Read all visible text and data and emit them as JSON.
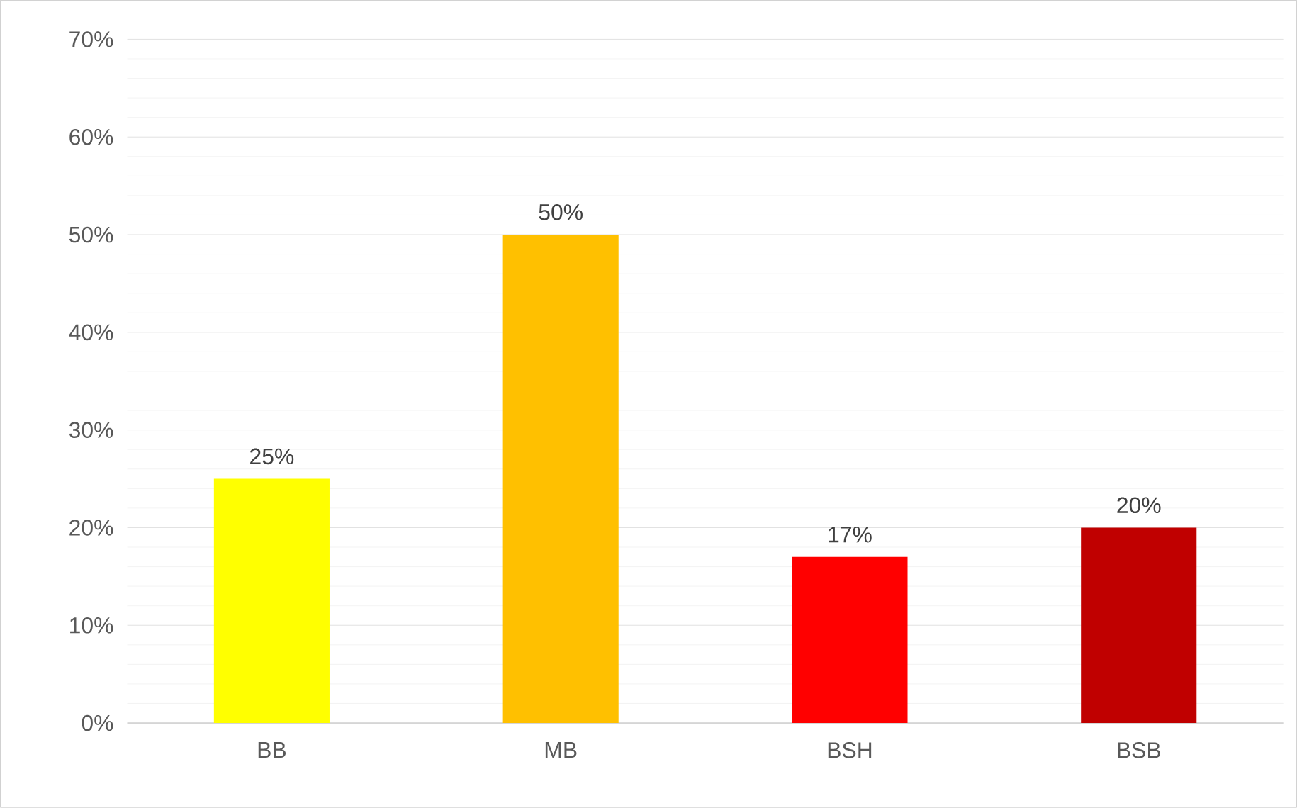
{
  "chart_data": {
    "type": "bar",
    "categories": [
      "BB",
      "MB",
      "BSH",
      "BSB"
    ],
    "values": [
      25,
      50,
      17,
      20
    ],
    "colors": [
      "#ffff00",
      "#ffc000",
      "#ff0000",
      "#c00000"
    ],
    "value_labels": [
      "25%",
      "50%",
      "17%",
      "20%"
    ],
    "ylim": [
      0,
      70
    ],
    "yticks": [
      {
        "value": 0,
        "label": "0%"
      },
      {
        "value": 10,
        "label": "10%"
      },
      {
        "value": 20,
        "label": "20%"
      },
      {
        "value": 30,
        "label": "30%"
      },
      {
        "value": 40,
        "label": "40%"
      },
      {
        "value": 50,
        "label": "50%"
      },
      {
        "value": 60,
        "label": "60%"
      },
      {
        "value": 70,
        "label": "70%"
      }
    ],
    "grid": "y"
  }
}
